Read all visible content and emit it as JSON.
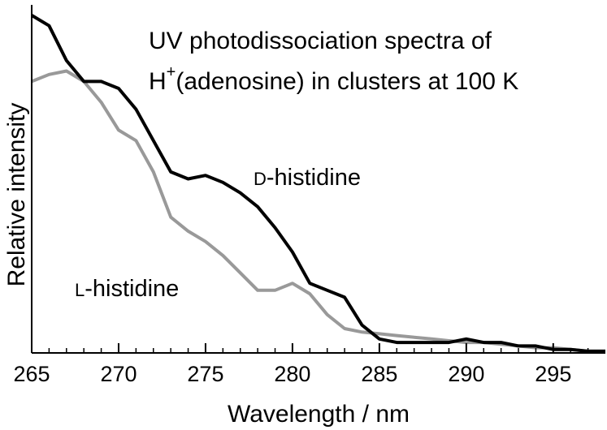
{
  "chart_data": {
    "type": "line",
    "title_line1": "UV photodissociation spectra of",
    "title_line2_prefix": "H",
    "title_line2_sup": "+",
    "title_line2_rest": "(adenosine) in clusters at 100 K",
    "xlabel": "Wavelength / nm",
    "ylabel": "Relative intensity",
    "xlim": [
      265,
      298
    ],
    "ylim": [
      0,
      1
    ],
    "grid": false,
    "x_ticks": [
      265,
      270,
      275,
      280,
      285,
      290,
      295
    ],
    "series": [
      {
        "name": "D-histidine",
        "label_smallcap": "D",
        "label_rest": "-histidine",
        "color": "#000000",
        "x": [
          265,
          266,
          267,
          268,
          269,
          270,
          271,
          272,
          273,
          274,
          275,
          276,
          277,
          278,
          279,
          280,
          281,
          282,
          283,
          284,
          285,
          286,
          287,
          288,
          289,
          290,
          291,
          292,
          293,
          294,
          295,
          296,
          297,
          298
        ],
        "values": [
          0.97,
          0.94,
          0.84,
          0.78,
          0.78,
          0.76,
          0.7,
          0.61,
          0.52,
          0.5,
          0.51,
          0.49,
          0.46,
          0.42,
          0.36,
          0.29,
          0.2,
          0.18,
          0.16,
          0.08,
          0.04,
          0.03,
          0.03,
          0.03,
          0.03,
          0.04,
          0.03,
          0.03,
          0.02,
          0.02,
          0.01,
          0.01,
          0.005,
          0.005
        ]
      },
      {
        "name": "L-histidine",
        "label_smallcap": "L",
        "label_rest": "-histidine",
        "color": "#999999",
        "x": [
          265,
          266,
          267,
          268,
          269,
          270,
          271,
          272,
          273,
          274,
          275,
          276,
          277,
          278,
          279,
          280,
          281,
          282,
          283,
          284,
          285,
          286,
          287,
          288,
          289,
          290,
          291,
          292,
          293,
          294,
          295,
          296,
          297,
          298
        ],
        "values": [
          0.78,
          0.8,
          0.81,
          0.78,
          0.72,
          0.64,
          0.61,
          0.52,
          0.39,
          0.35,
          0.32,
          0.28,
          0.23,
          0.18,
          0.18,
          0.2,
          0.17,
          0.11,
          0.07,
          0.06,
          0.055,
          0.05,
          0.045,
          0.04,
          0.035,
          0.03,
          0.03,
          0.025,
          0.02,
          0.015,
          0.015,
          0.01,
          0.005,
          0.005
        ]
      }
    ]
  }
}
